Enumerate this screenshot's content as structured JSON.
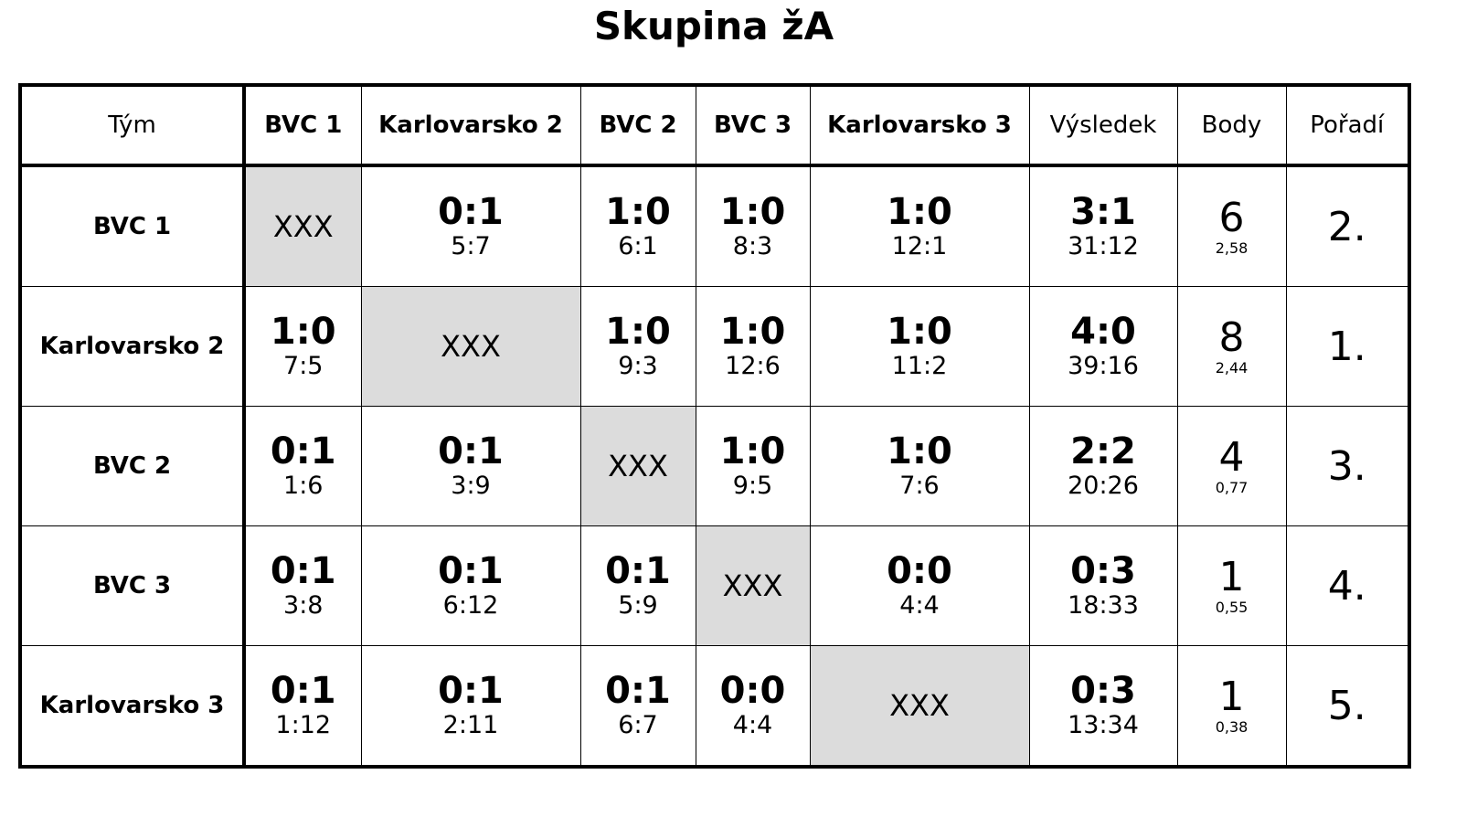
{
  "title": "Skupina žA",
  "table": {
    "header": [
      "Tým",
      "BVC 1",
      "Karlovarsko 2",
      "BVC 2",
      "BVC 3",
      "Karlovarsko 3",
      "Výsledek",
      "Body",
      "Pořadí"
    ],
    "rows": [
      {
        "team": "BVC 1",
        "matches": [
          "XXX",
          {
            "main": "0:1",
            "sub": "5:7"
          },
          {
            "main": "1:0",
            "sub": "6:1"
          },
          {
            "main": "1:0",
            "sub": "8:3"
          },
          {
            "main": "1:0",
            "sub": "12:1"
          }
        ],
        "result": {
          "main": "3:1",
          "sub": "31:12"
        },
        "points": {
          "main": 6,
          "sub": "2,58"
        },
        "rank": "2."
      },
      {
        "team": "Karlovarsko 2",
        "matches": [
          {
            "main": "1:0",
            "sub": "7:5"
          },
          "XXX",
          {
            "main": "1:0",
            "sub": "9:3"
          },
          {
            "main": "1:0",
            "sub": "12:6"
          },
          {
            "main": "1:0",
            "sub": "11:2"
          }
        ],
        "result": {
          "main": "4:0",
          "sub": "39:16"
        },
        "points": {
          "main": 8,
          "sub": "2,44"
        },
        "rank": "1."
      },
      {
        "team": "BVC 2",
        "matches": [
          {
            "main": "0:1",
            "sub": "1:6"
          },
          {
            "main": "0:1",
            "sub": "3:9"
          },
          "XXX",
          {
            "main": "1:0",
            "sub": "9:5"
          },
          {
            "main": "1:0",
            "sub": "7:6"
          }
        ],
        "result": {
          "main": "2:2",
          "sub": "20:26"
        },
        "points": {
          "main": 4,
          "sub": "0,77"
        },
        "rank": "3."
      },
      {
        "team": "BVC 3",
        "matches": [
          {
            "main": "0:1",
            "sub": "3:8"
          },
          {
            "main": "0:1",
            "sub": "6:12"
          },
          {
            "main": "0:1",
            "sub": "5:9"
          },
          "XXX",
          {
            "main": "0:0",
            "sub": "4:4"
          }
        ],
        "result": {
          "main": "0:3",
          "sub": "18:33"
        },
        "points": {
          "main": 1,
          "sub": "0,55"
        },
        "rank": "4."
      },
      {
        "team": "Karlovarsko 3",
        "matches": [
          {
            "main": "0:1",
            "sub": "1:12"
          },
          {
            "main": "0:1",
            "sub": "2:11"
          },
          {
            "main": "0:1",
            "sub": "6:7"
          },
          {
            "main": "0:0",
            "sub": "4:4"
          },
          "XXX"
        ],
        "result": {
          "main": "0:3",
          "sub": "13:34"
        },
        "points": {
          "main": 1,
          "sub": "0,38"
        },
        "rank": "5."
      }
    ]
  }
}
